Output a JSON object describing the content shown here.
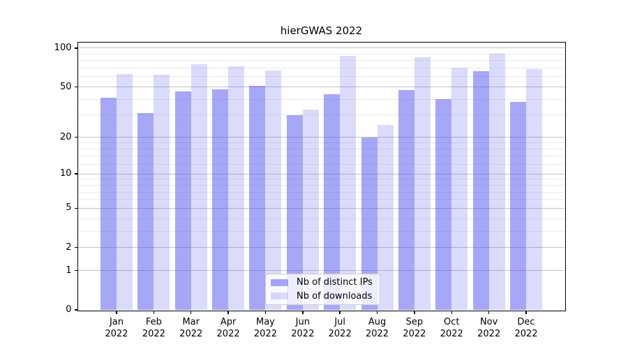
{
  "chart_data": {
    "type": "bar",
    "title": "hierGWAS 2022",
    "categories": [
      "Jan",
      "Feb",
      "Mar",
      "Apr",
      "May",
      "Jun",
      "Jul",
      "Aug",
      "Sep",
      "Oct",
      "Nov",
      "Dec"
    ],
    "year_label": "2022",
    "series": [
      {
        "name": "Nb of distinct IPs",
        "color": "rgba(75, 75, 240, 0.49)",
        "values": [
          41,
          31,
          46,
          48,
          51,
          30,
          44,
          20,
          47,
          40,
          66,
          38
        ]
      },
      {
        "name": "Nb of downloads",
        "color": "rgba(75, 75, 240, 0.20)",
        "values": [
          63,
          62,
          75,
          72,
          67,
          33,
          87,
          25,
          85,
          71,
          91,
          69
        ]
      }
    ],
    "y_scale": "log10(value+1), zero at baseline",
    "y_tick_values": [
      100,
      50,
      20,
      10,
      5,
      2,
      1,
      0
    ],
    "y_minor_gridline_values": [
      3,
      4,
      6,
      7,
      8,
      9,
      12,
      14,
      16,
      18,
      30,
      40,
      60,
      70,
      80,
      90
    ],
    "ylim": [
      0,
      110
    ],
    "xlabel": "",
    "ylabel": "",
    "grid": "horizontal, major and minor",
    "legend_position": "lower center",
    "colors": {
      "major_grid": "#c3c3c3",
      "minor_grid": "#eaeaea",
      "spine": "#000000",
      "background": "#ffffff"
    }
  }
}
